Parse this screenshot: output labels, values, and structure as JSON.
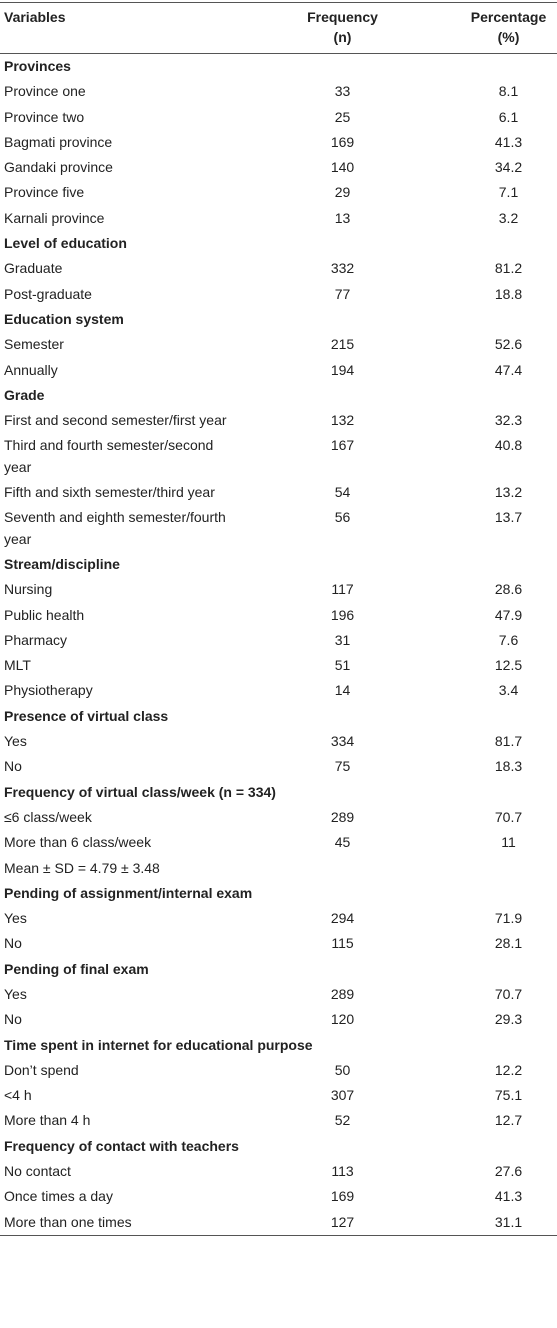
{
  "header": {
    "variables": "Variables",
    "frequency": "Frequency",
    "frequency_sub": "(n)",
    "percentage": "Percentage",
    "percentage_sub": "(%)"
  },
  "sections": [
    {
      "title": "Provinces",
      "rows": [
        {
          "label": "Province one",
          "frequency": 33,
          "percentage": 8.1
        },
        {
          "label": "Province two",
          "frequency": 25,
          "percentage": 6.1
        },
        {
          "label": "Bagmati province",
          "frequency": 169,
          "percentage": 41.3
        },
        {
          "label": "Gandaki province",
          "frequency": 140,
          "percentage": 34.2
        },
        {
          "label": "Province five",
          "frequency": 29,
          "percentage": 7.1
        },
        {
          "label": "Karnali province",
          "frequency": 13,
          "percentage": 3.2
        }
      ]
    },
    {
      "title": "Level of education",
      "rows": [
        {
          "label": "Graduate",
          "frequency": 332,
          "percentage": 81.2
        },
        {
          "label": "Post-graduate",
          "frequency": 77,
          "percentage": 18.8
        }
      ]
    },
    {
      "title": "Education system",
      "rows": [
        {
          "label": "Semester",
          "frequency": 215,
          "percentage": 52.6
        },
        {
          "label": "Annually",
          "frequency": 194,
          "percentage": 47.4
        }
      ]
    },
    {
      "title": "Grade",
      "rows": [
        {
          "label": "First and second semester/first year",
          "frequency": 132,
          "percentage": 32.3
        },
        {
          "label": "Third and fourth semester/second year",
          "frequency": 167,
          "percentage": 40.8
        },
        {
          "label": "Fifth and sixth semester/third year",
          "frequency": 54,
          "percentage": 13.2
        },
        {
          "label": "Seventh and eighth semester/fourth year",
          "frequency": 56,
          "percentage": 13.7
        }
      ]
    },
    {
      "title": "Stream/discipline",
      "rows": [
        {
          "label": "Nursing",
          "frequency": 117,
          "percentage": 28.6
        },
        {
          "label": "Public health",
          "frequency": 196,
          "percentage": 47.9
        },
        {
          "label": "Pharmacy",
          "frequency": 31,
          "percentage": 7.6
        },
        {
          "label": "MLT",
          "frequency": 51,
          "percentage": 12.5
        },
        {
          "label": "Physiotherapy",
          "frequency": 14,
          "percentage": 3.4
        }
      ]
    },
    {
      "title": "Presence of virtual class",
      "rows": [
        {
          "label": "Yes",
          "frequency": 334,
          "percentage": 81.7
        },
        {
          "label": "No",
          "frequency": 75,
          "percentage": 18.3
        }
      ]
    },
    {
      "title": "Frequency of virtual class/week (n = 334)",
      "rows": [
        {
          "label": "≤6 class/week",
          "frequency": 289,
          "percentage": 70.7
        },
        {
          "label": "More than 6 class/week",
          "frequency": 45,
          "percentage": 11
        },
        {
          "label": "Mean ± SD = 4.79 ± 3.48"
        }
      ]
    },
    {
      "title": "Pending of assignment/internal exam",
      "rows": [
        {
          "label": "Yes",
          "frequency": 294,
          "percentage": 71.9
        },
        {
          "label": "No",
          "frequency": 115,
          "percentage": 28.1
        }
      ]
    },
    {
      "title": "Pending of final exam",
      "rows": [
        {
          "label": "Yes",
          "frequency": 289,
          "percentage": 70.7
        },
        {
          "label": "No",
          "frequency": 120,
          "percentage": 29.3
        }
      ]
    },
    {
      "title": "Time spent in internet for educational purpose",
      "rows": [
        {
          "label": "Don’t spend",
          "frequency": 50,
          "percentage": 12.2
        },
        {
          "label": "<4 h",
          "frequency": 307,
          "percentage": 75.1
        },
        {
          "label": "More than 4 h",
          "frequency": 52,
          "percentage": 12.7
        }
      ]
    },
    {
      "title": "Frequency of contact with teachers",
      "rows": [
        {
          "label": "No contact",
          "frequency": 113,
          "percentage": 27.6
        },
        {
          "label": "Once times a day",
          "frequency": 169,
          "percentage": 41.3
        },
        {
          "label": "More than one times",
          "frequency": 127,
          "percentage": 31.1
        }
      ]
    }
  ]
}
